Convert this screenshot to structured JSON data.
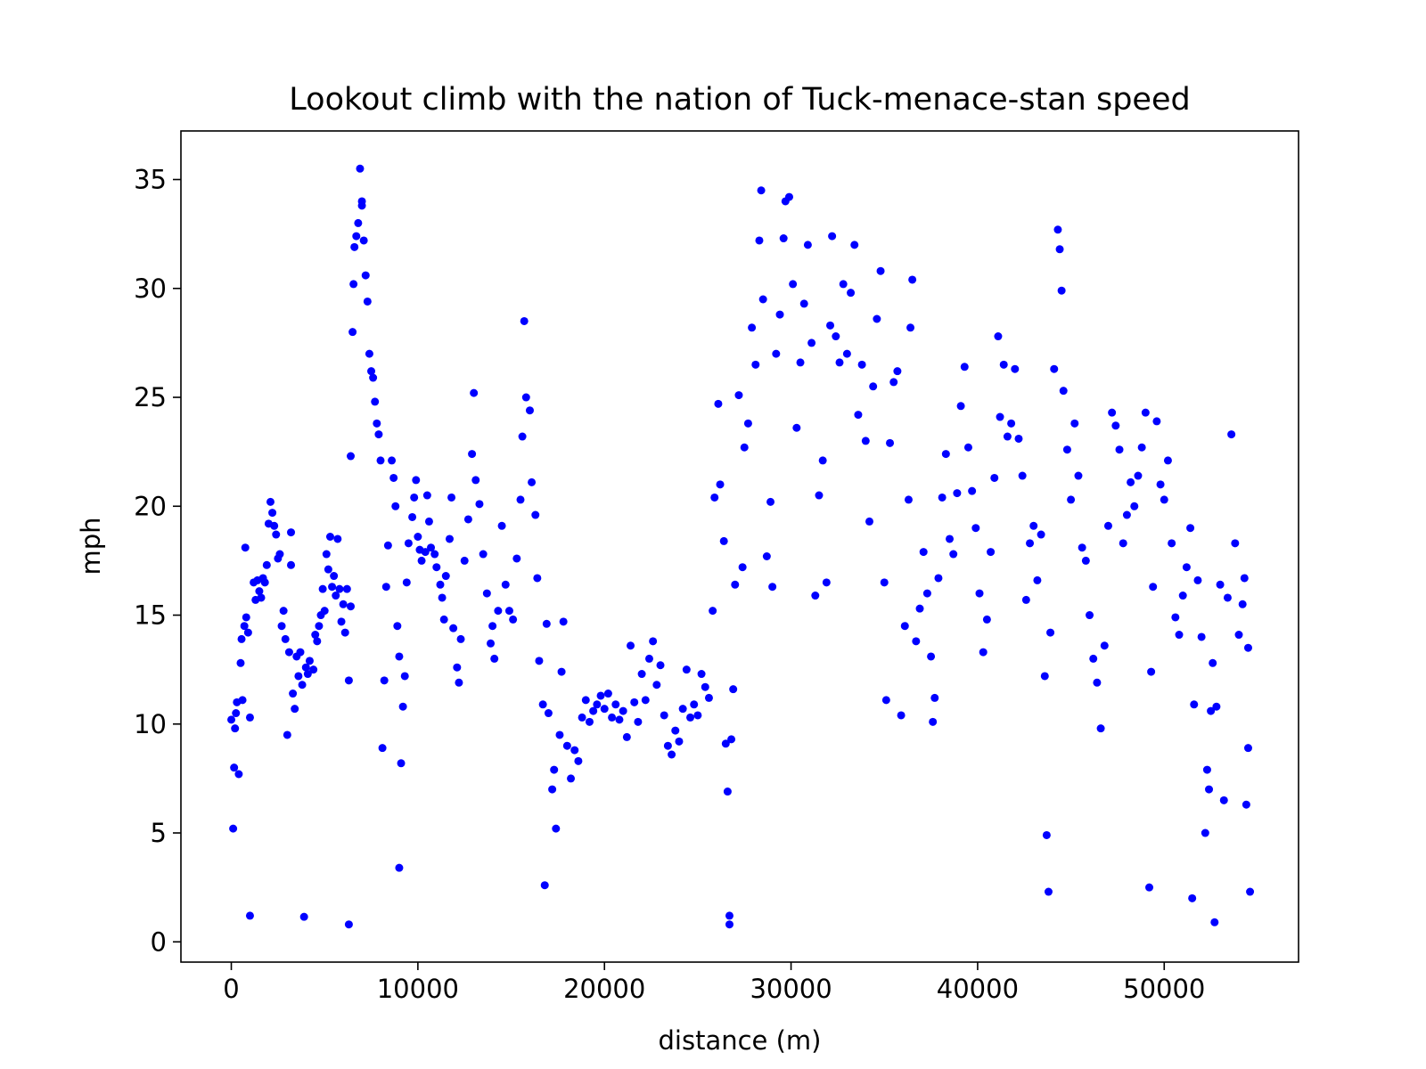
{
  "chart_data": {
    "type": "scatter",
    "title": "Lookout climb with the nation of Tuck-menace-stan speed",
    "xlabel": "distance (m)",
    "ylabel": "mph",
    "color": "#0000ff",
    "xlim": [
      -2700,
      57200
    ],
    "ylim": [
      -0.93,
      37.23
    ],
    "xticks": [
      0,
      10000,
      20000,
      30000,
      40000,
      50000
    ],
    "yticks": [
      0,
      5,
      10,
      15,
      20,
      25,
      30,
      35
    ],
    "x": [
      0,
      100,
      150,
      200,
      250,
      300,
      400,
      500,
      550,
      600,
      700,
      750,
      800,
      900,
      1000,
      1000,
      1200,
      1300,
      1400,
      1500,
      1600,
      1700,
      1800,
      1900,
      2000,
      2100,
      2200,
      2300,
      2400,
      2500,
      2600,
      2700,
      2800,
      2900,
      3000,
      3100,
      3200,
      3200,
      3300,
      3400,
      3500,
      3600,
      3700,
      3800,
      3900,
      4000,
      4100,
      4200,
      4400,
      4500,
      4600,
      4700,
      4800,
      4900,
      5000,
      5100,
      5200,
      5300,
      5400,
      5500,
      5600,
      5700,
      5800,
      5900,
      6000,
      6100,
      6200,
      6300,
      6300,
      6400,
      6400,
      6500,
      6550,
      6600,
      6700,
      6800,
      6900,
      7000,
      7000,
      7100,
      7200,
      7300,
      7400,
      7500,
      7600,
      7700,
      7800,
      7900,
      8000,
      8100,
      8200,
      8300,
      8400,
      8600,
      8700,
      8800,
      8900,
      9000,
      9000,
      9100,
      9200,
      9300,
      9400,
      9500,
      9700,
      9800,
      9900,
      10000,
      10100,
      10200,
      10400,
      10500,
      10600,
      10700,
      10900,
      11000,
      11200,
      11300,
      11400,
      11500,
      11700,
      11800,
      11900,
      12100,
      12200,
      12300,
      12500,
      12700,
      12900,
      13000,
      13100,
      13300,
      13500,
      13700,
      13900,
      14000,
      14100,
      14300,
      14500,
      14700,
      14900,
      15100,
      15300,
      15500,
      15600,
      15700,
      15800,
      16000,
      16100,
      16300,
      16400,
      16500,
      16700,
      16800,
      16900,
      17000,
      17200,
      17300,
      17400,
      17600,
      17700,
      17800,
      18000,
      18200,
      18400,
      18600,
      18800,
      19000,
      19200,
      19400,
      19600,
      19800,
      20000,
      20200,
      20400,
      20600,
      20800,
      21000,
      21200,
      21400,
      21600,
      21800,
      22000,
      22200,
      22400,
      22600,
      22800,
      23000,
      23200,
      23400,
      23600,
      23800,
      24000,
      24200,
      24400,
      24600,
      24800,
      25000,
      25200,
      25400,
      25600,
      25800,
      25900,
      26100,
      26200,
      26400,
      26500,
      26600,
      26700,
      26700,
      26800,
      26900,
      27000,
      27200,
      27400,
      27500,
      27700,
      27900,
      28100,
      28300,
      28400,
      28500,
      28700,
      28900,
      29000,
      29200,
      29400,
      29600,
      29700,
      29900,
      30100,
      30300,
      30500,
      30700,
      30900,
      31100,
      31300,
      31500,
      31700,
      31900,
      32100,
      32200,
      32400,
      32600,
      32800,
      33000,
      33200,
      33400,
      33600,
      33800,
      34000,
      34200,
      34400,
      34600,
      34800,
      35000,
      35100,
      35300,
      35500,
      35700,
      35900,
      36100,
      36300,
      36400,
      36500,
      36700,
      36900,
      37100,
      37300,
      37500,
      37600,
      37700,
      37900,
      38100,
      38300,
      38500,
      38700,
      38900,
      39100,
      39300,
      39500,
      39700,
      39900,
      40100,
      40300,
      40500,
      40700,
      40900,
      41100,
      41200,
      41400,
      41600,
      41800,
      42000,
      42200,
      42400,
      42600,
      42800,
      43000,
      43200,
      43400,
      43600,
      43700,
      43800,
      43900,
      44100,
      44300,
      44400,
      44500,
      44600,
      44800,
      45000,
      45200,
      45400,
      45600,
      45800,
      46000,
      46200,
      46400,
      46600,
      46800,
      47000,
      47200,
      47400,
      47600,
      47800,
      48000,
      48200,
      48400,
      48600,
      48800,
      49000,
      49200,
      49300,
      49400,
      49600,
      49800,
      50000,
      50200,
      50400,
      50600,
      50800,
      51000,
      51200,
      51400,
      51500,
      51600,
      51800,
      52000,
      52200,
      52300,
      52400,
      52500,
      52600,
      52700,
      52800,
      53000,
      53200,
      53400,
      53600,
      53800,
      54000,
      54200,
      54300,
      54400,
      54500,
      54600,
      54500
    ],
    "values": [
      10.2,
      5.2,
      8,
      9.8,
      10.5,
      11,
      7.7,
      12.8,
      13.9,
      11.1,
      14.5,
      18.1,
      14.9,
      14.2,
      10.3,
      1.2,
      16.5,
      15.7,
      16.6,
      16.1,
      15.8,
      16.7,
      16.5,
      17.3,
      19.2,
      20.2,
      19.7,
      19.1,
      18.7,
      17.6,
      17.8,
      14.5,
      15.2,
      13.9,
      9.5,
      13.3,
      18.8,
      17.3,
      11.4,
      10.7,
      13.1,
      12.2,
      13.3,
      11.8,
      1.15,
      12.6,
      12.3,
      12.9,
      12.5,
      14.1,
      13.8,
      14.5,
      15,
      16.2,
      15.2,
      17.8,
      17.1,
      18.6,
      16.3,
      16.8,
      15.9,
      18.5,
      16.2,
      14.7,
      15.5,
      14.2,
      16.2,
      0.8,
      12,
      15.4,
      22.3,
      28,
      30.2,
      31.9,
      32.4,
      33,
      35.5,
      34,
      33.8,
      32.2,
      30.6,
      29.4,
      27,
      26.2,
      25.9,
      24.8,
      23.8,
      23.3,
      22.1,
      8.9,
      12,
      16.3,
      18.2,
      22.1,
      21.3,
      20,
      14.5,
      13.1,
      3.4,
      8.2,
      10.8,
      12.2,
      16.5,
      18.3,
      19.5,
      20.4,
      21.2,
      18.6,
      18,
      17.5,
      17.9,
      20.5,
      19.3,
      18.1,
      17.8,
      17.2,
      16.4,
      15.8,
      14.8,
      16.8,
      18.5,
      20.4,
      14.4,
      12.6,
      11.9,
      13.9,
      17.5,
      19.4,
      22.4,
      25.2,
      21.2,
      20.1,
      17.8,
      16,
      13.7,
      14.5,
      13,
      15.2,
      19.1,
      16.4,
      15.2,
      14.8,
      17.6,
      20.3,
      23.2,
      28.5,
      25,
      24.4,
      21.1,
      19.6,
      16.7,
      12.9,
      10.9,
      2.6,
      14.6,
      10.5,
      7,
      7.9,
      5.2,
      9.5,
      12.4,
      14.7,
      9,
      7.5,
      8.8,
      8.3,
      10.3,
      11.1,
      10.1,
      10.6,
      10.9,
      11.3,
      10.7,
      11.4,
      10.3,
      10.9,
      10.2,
      10.6,
      9.4,
      13.6,
      11,
      10.1,
      12.3,
      11.1,
      13,
      13.8,
      11.8,
      12.7,
      10.4,
      9,
      8.6,
      9.7,
      9.2,
      10.7,
      12.5,
      10.3,
      10.9,
      10.4,
      12.3,
      11.7,
      11.2,
      15.2,
      20.4,
      24.7,
      21,
      18.4,
      9.1,
      6.9,
      1.2,
      0.8,
      9.3,
      11.6,
      16.4,
      25.1,
      17.2,
      22.7,
      23.8,
      28.2,
      26.5,
      32.2,
      34.5,
      29.5,
      17.7,
      20.2,
      16.3,
      27,
      28.8,
      32.3,
      34,
      34.2,
      30.2,
      23.6,
      26.6,
      29.3,
      32,
      27.5,
      15.9,
      20.5,
      22.1,
      16.5,
      28.3,
      32.4,
      27.8,
      26.6,
      30.2,
      27,
      29.8,
      32,
      24.2,
      26.5,
      23,
      19.3,
      25.5,
      28.6,
      30.8,
      16.5,
      11.1,
      22.9,
      25.7,
      26.2,
      10.4,
      14.5,
      20.3,
      28.2,
      30.4,
      13.8,
      15.3,
      17.9,
      16,
      13.1,
      10.1,
      11.2,
      16.7,
      20.4,
      22.4,
      18.5,
      17.8,
      20.6,
      24.6,
      26.4,
      22.7,
      20.7,
      19,
      16,
      13.3,
      14.8,
      17.9,
      21.3,
      27.8,
      24.1,
      26.5,
      23.2,
      23.8,
      26.3,
      23.1,
      21.4,
      15.7,
      18.3,
      19.1,
      16.6,
      18.7,
      12.2,
      4.9,
      2.3,
      14.2,
      26.3,
      32.7,
      31.8,
      29.9,
      25.3,
      22.6,
      20.3,
      23.8,
      21.4,
      18.1,
      17.5,
      15,
      13,
      11.9,
      9.8,
      13.6,
      19.1,
      24.3,
      23.7,
      22.6,
      18.3,
      19.6,
      21.1,
      20,
      21.4,
      22.7,
      24.3,
      2.5,
      12.4,
      16.3,
      23.9,
      21,
      20.3,
      22.1,
      18.3,
      14.9,
      14.1,
      15.9,
      17.2,
      19,
      2,
      10.9,
      16.6,
      14,
      5,
      7.9,
      7,
      10.6,
      12.8,
      0.9,
      10.8,
      16.4,
      6.5,
      15.8,
      23.3,
      18.3,
      14.1,
      15.5,
      16.7,
      6.3,
      13.5,
      2.3,
      8.9
    ]
  }
}
